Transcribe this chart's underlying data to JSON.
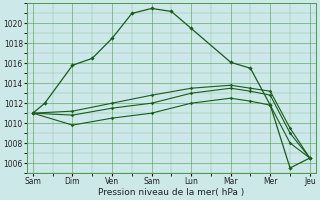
{
  "bg_color": "#cce8e8",
  "grid_color": "#4d994d",
  "line_color": "#1a5c1a",
  "xlabel": "Pression niveau de la mer( hPa )",
  "ylim": [
    1005,
    1022
  ],
  "yticks": [
    1006,
    1008,
    1010,
    1012,
    1014,
    1016,
    1018,
    1020
  ],
  "x_labels": [
    "Sam",
    "Dim",
    "Ven",
    "Sam",
    "Lun",
    "Mar",
    "Mer",
    "Jeu"
  ],
  "x_tick_pos": [
    0,
    1,
    2,
    3,
    4,
    5,
    6,
    7
  ],
  "line1_x": [
    0,
    0.3,
    1.0,
    1.5,
    2.0,
    2.5,
    3.0,
    3.5,
    4.0,
    5.0,
    5.5,
    6.0,
    6.5,
    7.0
  ],
  "line1_y": [
    1011,
    1012,
    1015.8,
    1016.5,
    1018.5,
    1021.0,
    1021.5,
    1021.2,
    1019.5,
    1016.1,
    1015.5,
    1011.8,
    1005.5,
    1006.5
  ],
  "line2_x": [
    0,
    1.0,
    2.0,
    3.0,
    4.0,
    5.0,
    5.5,
    6.0,
    6.5,
    7.0
  ],
  "line2_y": [
    1011,
    1011.2,
    1012.0,
    1012.8,
    1013.5,
    1013.8,
    1013.5,
    1013.2,
    1009.5,
    1006.5
  ],
  "line3_x": [
    0,
    1.0,
    2.0,
    3.0,
    4.0,
    5.0,
    5.5,
    6.0,
    6.5,
    7.0
  ],
  "line3_y": [
    1011,
    1010.8,
    1011.5,
    1012.0,
    1013.0,
    1013.5,
    1013.2,
    1012.8,
    1009.0,
    1006.5
  ],
  "line4_x": [
    0,
    1.0,
    2.0,
    3.0,
    4.0,
    5.0,
    5.5,
    6.0,
    6.5,
    7.0
  ],
  "line4_y": [
    1011,
    1009.8,
    1010.5,
    1011.0,
    1012.0,
    1012.5,
    1012.2,
    1011.8,
    1008.0,
    1006.5
  ],
  "figsize": [
    3.2,
    2.0
  ],
  "dpi": 100
}
